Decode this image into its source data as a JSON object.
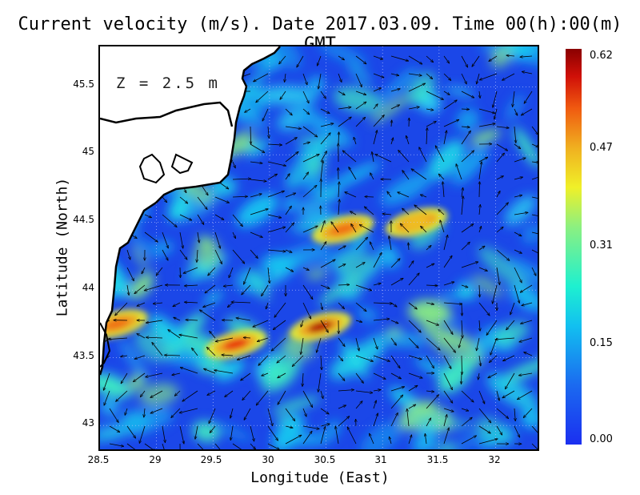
{
  "title": "Current velocity (m/s). Date 2017.03.09. Time 00(h):00(m) GMT",
  "depth_label": "Z = 2.5 m",
  "xlabel": "Longitude (East)",
  "ylabel": "Latitude (North)",
  "x_ticks": [
    "28.5",
    "29",
    "29.5",
    "30",
    "30.5",
    "31",
    "31.5",
    "32"
  ],
  "y_ticks": [
    "45.5",
    "45",
    "44.5",
    "44",
    "43.5",
    "43"
  ],
  "colorbar_ticks": [
    "0.62",
    "0.47",
    "0.31",
    "0.15",
    "0.00"
  ],
  "colors": {
    "low": "#1b47e8",
    "land": "#ffffff",
    "coast": "#000000"
  },
  "chart_data": {
    "type": "heatmap",
    "title": "Current velocity (m/s). Date 2017.03.09. Time 00(h):00(m) GMT",
    "xlabel": "Longitude (East)",
    "ylabel": "Latitude (North)",
    "xlim": [
      28.5,
      32.4
    ],
    "ylim": [
      42.8,
      45.8
    ],
    "colorbar": {
      "label": "m/s",
      "range": [
        0.0,
        0.62
      ],
      "ticks": [
        0.0,
        0.15,
        0.31,
        0.47,
        0.62
      ]
    },
    "grid": true,
    "overlay": "velocity vectors",
    "hotspots": [
      {
        "lon": 30.45,
        "lat": 43.73,
        "speed": 0.62
      },
      {
        "lon": 29.7,
        "lat": 43.6,
        "speed": 0.55
      },
      {
        "lon": 28.65,
        "lat": 43.75,
        "speed": 0.5
      },
      {
        "lon": 30.65,
        "lat": 44.45,
        "speed": 0.5
      },
      {
        "lon": 31.3,
        "lat": 44.5,
        "speed": 0.45
      }
    ]
  }
}
